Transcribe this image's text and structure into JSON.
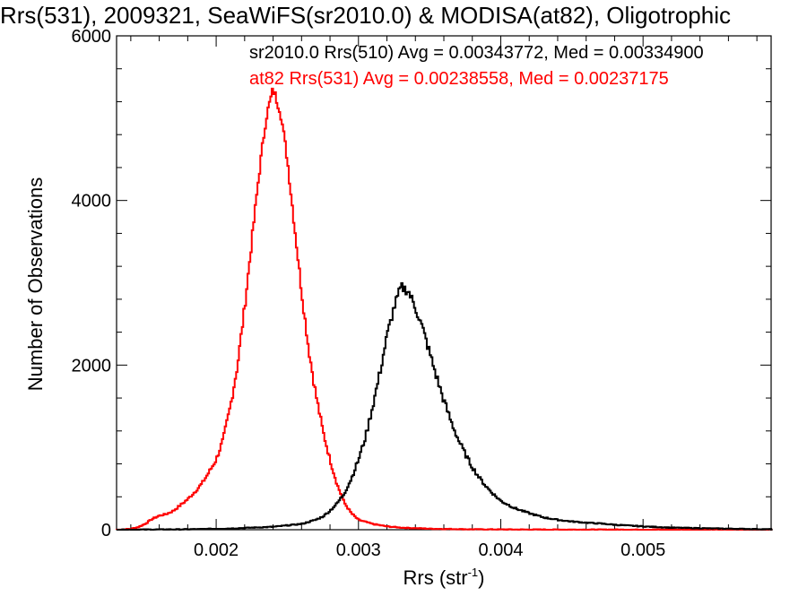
{
  "chart_data": {
    "type": "histogram",
    "title": "Rrs(531), 2009321, SeaWiFS(sr2010.0) & MODISA(at82), Oligotrophic",
    "xlabel": "Rrs (str",
    "xlabel_sup": "-1",
    "xlabel_end": ")",
    "ylabel": "Number of Observations",
    "xlim": [
      0.0013,
      0.0059
    ],
    "ylim": [
      0,
      6000
    ],
    "xticks": [
      0.002,
      0.003,
      0.004,
      0.005
    ],
    "xtick_labels": [
      "0.002",
      "0.003",
      "0.004",
      "0.005"
    ],
    "yticks": [
      0,
      2000,
      4000,
      6000
    ],
    "ytick_labels": [
      "0",
      "2000",
      "4000",
      "6000"
    ],
    "annotations": [
      {
        "text": "sr2010.0 Rrs(510) Avg = 0.00343772, Med = 0.00334900",
        "color": "#000000"
      },
      {
        "text": "at82 Rrs(531) Avg = 0.00238558, Med = 0.00237175",
        "color": "#ff0000"
      }
    ],
    "series": [
      {
        "color": "#ff0000",
        "points": [
          [
            0.0013,
            0
          ],
          [
            0.0014,
            10
          ],
          [
            0.00145,
            30
          ],
          [
            0.0015,
            70
          ],
          [
            0.00155,
            130
          ],
          [
            0.0016,
            170
          ],
          [
            0.00165,
            190
          ],
          [
            0.0017,
            230
          ],
          [
            0.00175,
            300
          ],
          [
            0.0018,
            370
          ],
          [
            0.00185,
            460
          ],
          [
            0.0019,
            560
          ],
          [
            0.00195,
            700
          ],
          [
            0.002,
            850
          ],
          [
            0.00205,
            1100
          ],
          [
            0.0021,
            1500
          ],
          [
            0.00215,
            2000
          ],
          [
            0.0022,
            2700
          ],
          [
            0.00225,
            3500
          ],
          [
            0.0023,
            4300
          ],
          [
            0.00235,
            5000
          ],
          [
            0.0024,
            5350
          ],
          [
            0.00245,
            5100
          ],
          [
            0.0025,
            4500
          ],
          [
            0.00255,
            3700
          ],
          [
            0.0026,
            2900
          ],
          [
            0.00265,
            2200
          ],
          [
            0.0027,
            1650
          ],
          [
            0.00275,
            1200
          ],
          [
            0.0028,
            850
          ],
          [
            0.00285,
            550
          ],
          [
            0.0029,
            330
          ],
          [
            0.00295,
            200
          ],
          [
            0.003,
            120
          ],
          [
            0.0031,
            70
          ],
          [
            0.0032,
            40
          ],
          [
            0.0033,
            25
          ],
          [
            0.0035,
            12
          ],
          [
            0.0038,
            5
          ],
          [
            0.0042,
            2
          ],
          [
            0.0059,
            0
          ]
        ]
      },
      {
        "color": "#000000",
        "points": [
          [
            0.0013,
            0
          ],
          [
            0.0018,
            5
          ],
          [
            0.0021,
            15
          ],
          [
            0.0024,
            35
          ],
          [
            0.0026,
            70
          ],
          [
            0.0027,
            120
          ],
          [
            0.00275,
            160
          ],
          [
            0.0028,
            230
          ],
          [
            0.00285,
            320
          ],
          [
            0.0029,
            440
          ],
          [
            0.00295,
            620
          ],
          [
            0.003,
            850
          ],
          [
            0.00305,
            1130
          ],
          [
            0.0031,
            1500
          ],
          [
            0.00315,
            1900
          ],
          [
            0.0032,
            2350
          ],
          [
            0.00325,
            2700
          ],
          [
            0.0033,
            2950
          ],
          [
            0.00335,
            2900
          ],
          [
            0.0034,
            2700
          ],
          [
            0.00345,
            2450
          ],
          [
            0.0035,
            2150
          ],
          [
            0.00355,
            1850
          ],
          [
            0.0036,
            1570
          ],
          [
            0.00365,
            1320
          ],
          [
            0.0037,
            1100
          ],
          [
            0.00375,
            920
          ],
          [
            0.0038,
            760
          ],
          [
            0.00385,
            630
          ],
          [
            0.0039,
            520
          ],
          [
            0.00395,
            430
          ],
          [
            0.004,
            350
          ],
          [
            0.0041,
            260
          ],
          [
            0.0042,
            200
          ],
          [
            0.0043,
            150
          ],
          [
            0.0044,
            120
          ],
          [
            0.0045,
            100
          ],
          [
            0.0046,
            85
          ],
          [
            0.0047,
            75
          ],
          [
            0.0048,
            60
          ],
          [
            0.005,
            40
          ],
          [
            0.0052,
            25
          ],
          [
            0.0055,
            15
          ],
          [
            0.0059,
            5
          ]
        ]
      }
    ]
  }
}
